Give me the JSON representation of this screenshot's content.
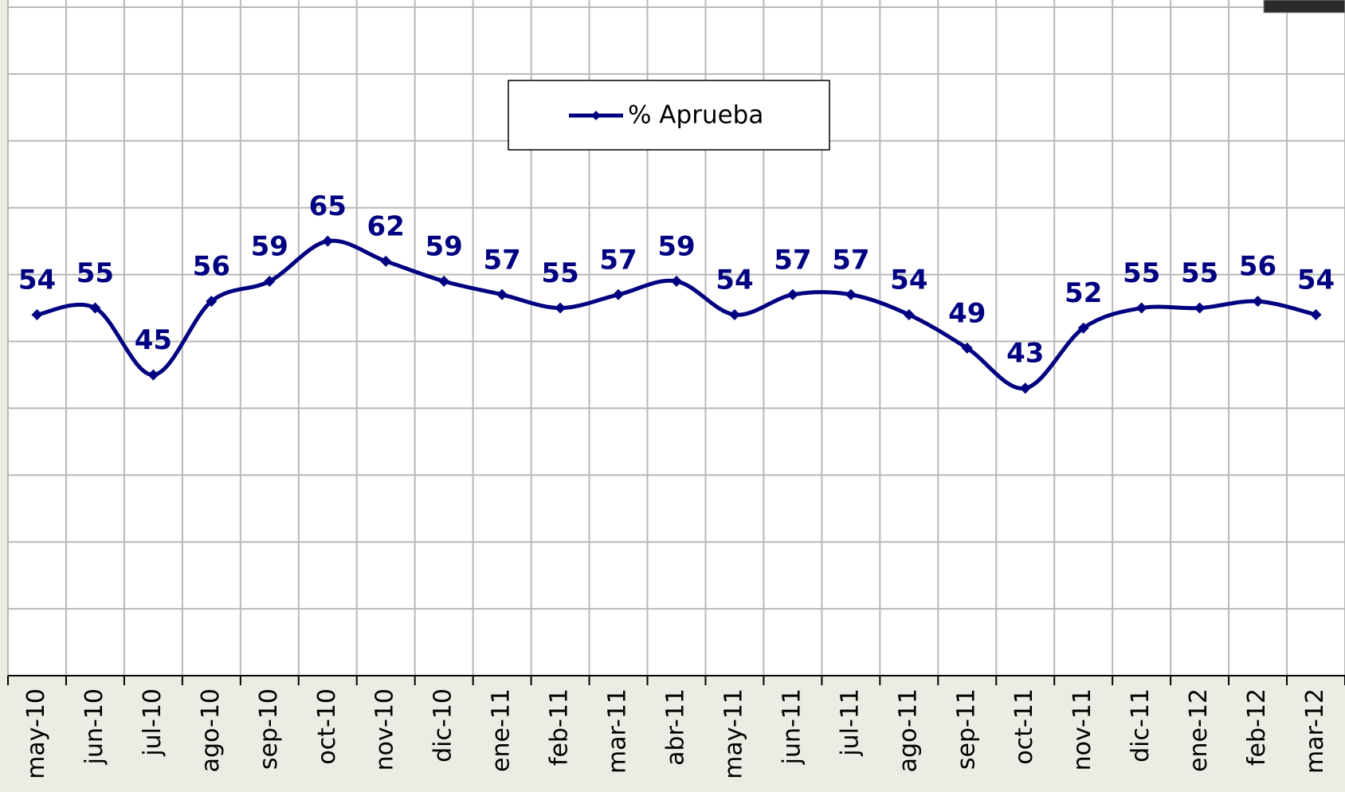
{
  "chart_data": {
    "type": "line",
    "categories": [
      "may-10",
      "jun-10",
      "jul-10",
      "ago-10",
      "sep-10",
      "oct-10",
      "nov-10",
      "dic-10",
      "ene-11",
      "feb-11",
      "mar-11",
      "abr-11",
      "may-11",
      "jun-11",
      "jul-11",
      "ago-11",
      "sep-11",
      "oct-11",
      "nov-11",
      "dic-11",
      "ene-12",
      "feb-12",
      "mar-12"
    ],
    "series": [
      {
        "name": "% Aprueba",
        "color": "#000080",
        "values": [
          54,
          55,
          45,
          56,
          59,
          65,
          62,
          59,
          57,
          55,
          57,
          59,
          54,
          57,
          57,
          54,
          49,
          43,
          52,
          55,
          55,
          56,
          54
        ]
      }
    ],
    "ylim": [
      0,
      100
    ],
    "yticks": [
      0,
      10,
      20,
      30,
      40,
      50,
      60,
      70,
      80,
      90,
      100
    ],
    "grid": true,
    "legend": "top"
  }
}
